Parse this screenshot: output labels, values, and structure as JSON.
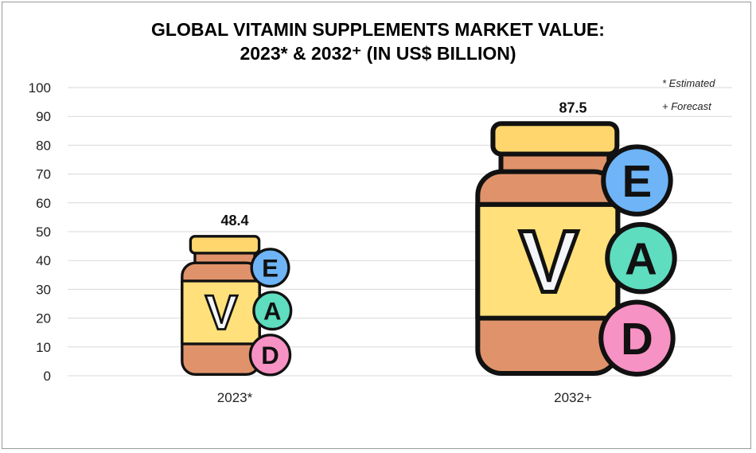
{
  "chart_data": {
    "type": "bar",
    "title_line1": "GLOBAL VITAMIN SUPPLEMENTS MARKET VALUE:",
    "title_line2": "2023* & 2032⁺ (IN US$ BILLION)",
    "categories": [
      "2023*",
      "2032+"
    ],
    "values": [
      48.4,
      87.5
    ],
    "data_labels": [
      "48.4",
      "87.5"
    ],
    "ylim": [
      0,
      100
    ],
    "yticks": [
      "0",
      "10",
      "20",
      "30",
      "40",
      "50",
      "60",
      "70",
      "80",
      "90",
      "100"
    ],
    "grid": true,
    "bar_style": "vitamin bottle pictogram",
    "bottle_letters": [
      "V",
      "E",
      "A",
      "D"
    ],
    "notes": [
      "* Estimated",
      "+ Forecast"
    ],
    "colors": {
      "lid": "#FFD66E",
      "body": "#E0936A",
      "label": "#FFE07A",
      "E": "#6EB4F7",
      "A": "#5EDDBF",
      "D": "#F792C4",
      "grid": "#d9d9d9"
    }
  }
}
